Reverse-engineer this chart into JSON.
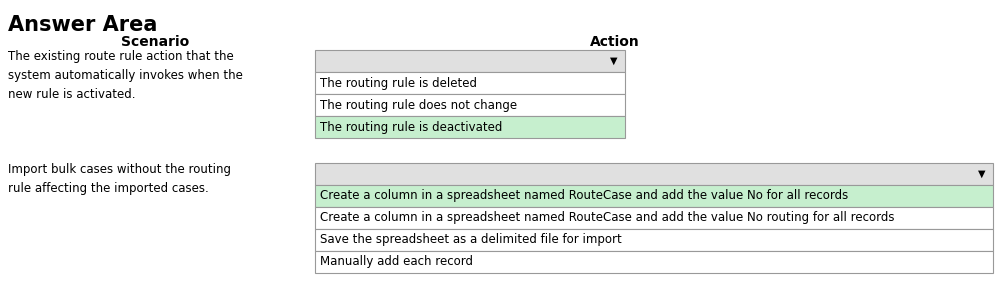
{
  "title": "Answer Area",
  "col1_header": "Scenario",
  "col2_header": "Action",
  "scenario1": "The existing route rule action that the\nsystem automatically invokes when the\nnew rule is activated.",
  "scenario2": "Import bulk cases without the routing\nrule affecting the imported cases.",
  "dropdown1_items": [
    "The routing rule is deleted",
    "The routing rule does not change",
    "The routing rule is deactivated"
  ],
  "dropdown1_selected": 2,
  "dropdown2_items": [
    "Create a column in a spreadsheet named RouteCase and add the value No for all records",
    "Create a column in a spreadsheet named RouteCase and add the value No routing for all records",
    "Save the spreadsheet as a delimited file for import",
    "Manually add each record"
  ],
  "dropdown2_selected": 0,
  "highlight_color": "#c6efce",
  "box_bg": "#e0e0e0",
  "box_border": "#999999",
  "white_bg": "#ffffff",
  "text_color": "#000000",
  "header_color": "#000000",
  "title_color": "#000000",
  "font_size_title": 15,
  "font_size_header": 10,
  "font_size_body": 8.5,
  "bg_color": "#ffffff",
  "fig_width": 10.0,
  "fig_height": 2.93,
  "dpi": 100
}
